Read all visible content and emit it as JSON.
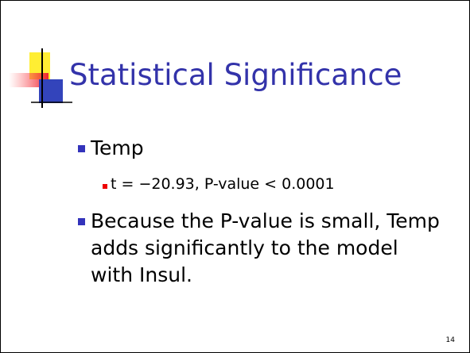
{
  "slide": {
    "title": "Statistical Significance",
    "bullets": [
      {
        "text": "Temp",
        "sub": [
          "t = −20.93, P-value < 0.0001"
        ]
      },
      {
        "text": "Because the P-value is small, Temp adds significantly to the model with Insul."
      }
    ],
    "page_number": "14"
  }
}
